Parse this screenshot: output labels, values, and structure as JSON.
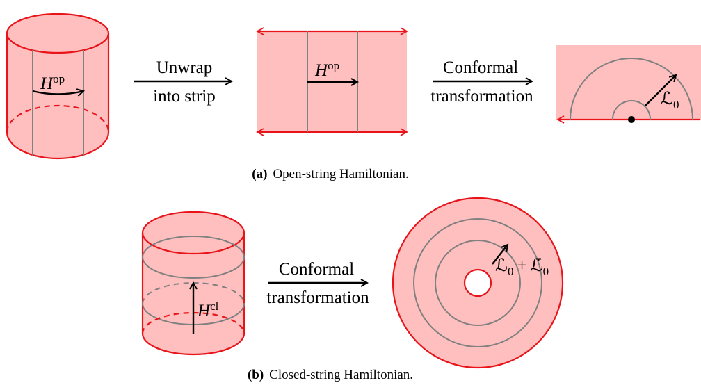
{
  "panel_a": {
    "cylinder": {
      "operator": {
        "base": "H",
        "sup": "op"
      }
    },
    "step_1": {
      "line_1": "Unwrap",
      "line_2": "into strip"
    },
    "strip": {
      "operator": {
        "base": "H",
        "sup": "op"
      }
    },
    "step_2": {
      "line_1": "Conformal",
      "line_2": "transformation"
    },
    "half_plane": {
      "operator": {
        "base": "ℒ",
        "sub": "0"
      }
    },
    "caption": {
      "tag": "(a)",
      "text": "Open-string Hamiltonian."
    }
  },
  "panel_b": {
    "cylinder": {
      "operator": {
        "base": "H",
        "sup": "cl"
      }
    },
    "step": {
      "line_1": "Conformal",
      "line_2": "transformation"
    },
    "disk": {
      "operator": {
        "left": {
          "base": "ℒ",
          "sub": "0"
        },
        "plus": "+",
        "right": {
          "base": "ℒ̄",
          "sub": "0"
        }
      }
    },
    "caption": {
      "tag": "(b)",
      "text": "Closed-string Hamiltonian."
    }
  }
}
